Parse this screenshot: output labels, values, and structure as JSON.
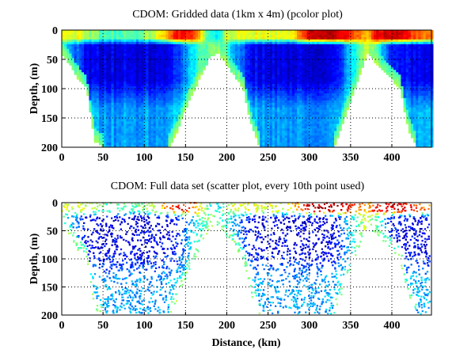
{
  "chart_data": {
    "type": "heatmap",
    "colormap": "jet",
    "panels": [
      {
        "title": "CDOM: Gridded data (1km x 4m) (pcolor plot)",
        "type": "heatmap",
        "xlabel": "",
        "ylabel": "Depth, (m)"
      },
      {
        "title": "CDOM: Full data set (scatter plot, every 10th point used)",
        "type": "scatter",
        "xlabel": "Distance, (km)",
        "ylabel": "Depth, (m)"
      }
    ],
    "xlim": [
      0,
      448
    ],
    "ylim": [
      0,
      200
    ],
    "y_reversed": true,
    "xticks": [
      0,
      50,
      100,
      150,
      200,
      250,
      300,
      350,
      400
    ],
    "yticks": [
      0,
      50,
      100,
      150,
      200
    ],
    "grid": true,
    "field": {
      "distance_km": [
        0,
        10,
        20,
        30,
        40,
        50,
        60,
        70,
        80,
        90,
        100,
        110,
        120,
        130,
        140,
        150,
        160,
        170,
        180,
        190,
        200,
        210,
        220,
        230,
        240,
        250,
        260,
        270,
        280,
        290,
        300,
        310,
        320,
        330,
        340,
        350,
        360,
        370,
        380,
        390,
        400,
        410,
        420,
        430,
        440
      ],
      "max_depth_m": [
        40,
        60,
        85,
        100,
        190,
        200,
        200,
        200,
        200,
        200,
        200,
        200,
        200,
        200,
        175,
        135,
        105,
        75,
        45,
        40,
        60,
        80,
        100,
        165,
        200,
        200,
        200,
        200,
        200,
        200,
        200,
        200,
        200,
        200,
        160,
        120,
        80,
        40,
        55,
        70,
        85,
        100,
        170,
        200,
        200
      ],
      "surface_level": [
        0.6,
        0.6,
        0.6,
        0.55,
        0.5,
        0.45,
        0.45,
        0.45,
        0.45,
        0.45,
        0.5,
        0.55,
        0.65,
        0.75,
        0.85,
        0.85,
        0.8,
        0.6,
        0.4,
        0.35,
        0.55,
        0.6,
        0.6,
        0.6,
        0.6,
        0.6,
        0.6,
        0.6,
        0.65,
        0.75,
        0.95,
        0.95,
        0.95,
        0.95,
        0.9,
        0.85,
        0.75,
        0.7,
        0.85,
        0.92,
        0.92,
        0.9,
        0.85,
        0.8,
        0.75
      ],
      "core_level": [
        0.35,
        0.3,
        0.2,
        0.12,
        0.1,
        0.1,
        0.1,
        0.1,
        0.1,
        0.1,
        0.1,
        0.1,
        0.1,
        0.12,
        0.15,
        0.25,
        0.35,
        0.45,
        0.5,
        0.5,
        0.4,
        0.3,
        0.2,
        0.12,
        0.1,
        0.1,
        0.1,
        0.1,
        0.1,
        0.1,
        0.1,
        0.1,
        0.1,
        0.12,
        0.2,
        0.35,
        0.45,
        0.6,
        0.45,
        0.3,
        0.15,
        0.12,
        0.12,
        0.12,
        0.1
      ],
      "deep_level": [
        0.4,
        0.4,
        0.4,
        0.35,
        0.3,
        0.28,
        0.28,
        0.28,
        0.28,
        0.28,
        0.28,
        0.28,
        0.28,
        0.3,
        0.32,
        0.38,
        0.42,
        0.45,
        0.5,
        0.5,
        0.45,
        0.4,
        0.38,
        0.32,
        0.28,
        0.28,
        0.28,
        0.28,
        0.28,
        0.28,
        0.28,
        0.28,
        0.28,
        0.3,
        0.35,
        0.4,
        0.45,
        0.6,
        0.45,
        0.4,
        0.35,
        0.32,
        0.3,
        0.3,
        0.3
      ]
    }
  }
}
